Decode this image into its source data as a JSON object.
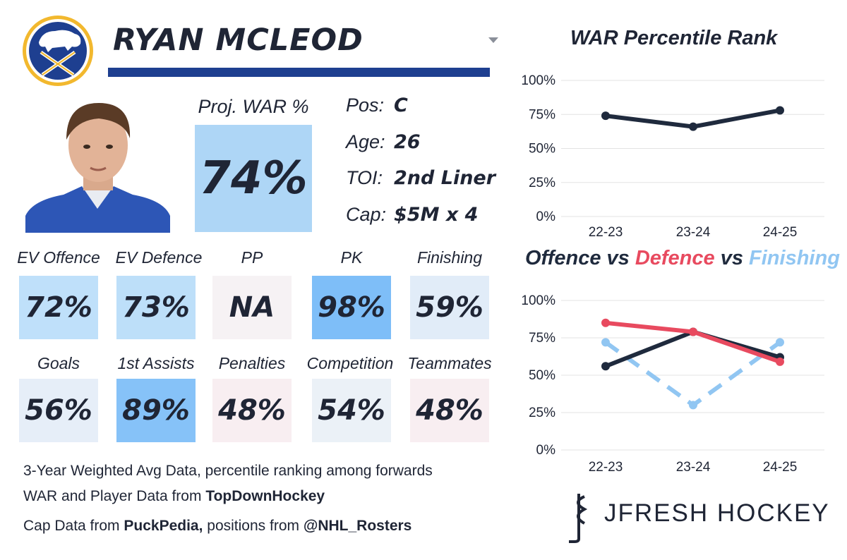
{
  "player": {
    "name": "RYAN MCLEOD",
    "proj_war_label": "Proj. WAR %",
    "proj_war_value": "74%",
    "proj_war_fraction": 0.74,
    "info": [
      {
        "key": "Pos:",
        "value": "C"
      },
      {
        "key": "Age:",
        "value": "26"
      },
      {
        "key": "TOI:",
        "value": "2nd Liner"
      },
      {
        "key": "Cap:",
        "value": "$5M x 4"
      }
    ]
  },
  "stats": [
    {
      "label": "EV Offence",
      "value": "72%",
      "color": "#bfe0fa"
    },
    {
      "label": "EV Defence",
      "value": "73%",
      "color": "#bddff9"
    },
    {
      "label": "PP",
      "value": "NA",
      "color": "#f6f2f4"
    },
    {
      "label": "PK",
      "value": "98%",
      "color": "#7ebef8"
    },
    {
      "label": "Finishing",
      "value": "59%",
      "color": "#e1ecf8"
    },
    {
      "label": "Goals",
      "value": "56%",
      "color": "#e6eef8"
    },
    {
      "label": "1st Assists",
      "value": "89%",
      "color": "#86c2f8"
    },
    {
      "label": "Penalties",
      "value": "48%",
      "color": "#f8eef1"
    },
    {
      "label": "Competition",
      "value": "54%",
      "color": "#ebf1f7"
    },
    {
      "label": "Teammates",
      "value": "48%",
      "color": "#f8eef1"
    }
  ],
  "footer": {
    "line1": "3-Year Weighted Avg Data, percentile ranking among forwards",
    "line2_prefix": "WAR and Player Data from ",
    "line2_bold": "TopDownHockey",
    "line3_prefix": "Cap Data from ",
    "line3_bold1": "PuckPedia,",
    "line3_mid": " positions from ",
    "line3_bold2": "@NHL_Rosters"
  },
  "brand": "JFRESH HOCKEY",
  "colors": {
    "navy": "#1f2535",
    "blue_bar": "#1e3f90",
    "offence": "#1f2a3d",
    "defence": "#e84a5f",
    "finishing": "#91c6f2"
  },
  "icons": [
    "team-logo-icon",
    "dropdown-caret-icon",
    "hockey-stick-logo-icon"
  ],
  "chart_data": [
    {
      "type": "line",
      "title": "WAR Percentile Rank",
      "categories": [
        "22-23",
        "23-24",
        "24-25"
      ],
      "series": [
        {
          "values": [
            74,
            66,
            78
          ],
          "color": "#1f2a3d"
        }
      ],
      "yticks": [
        "0%",
        "25%",
        "50%",
        "75%",
        "100%"
      ],
      "ylim": [
        0,
        100
      ],
      "grid": true
    },
    {
      "type": "line",
      "title_parts": [
        {
          "text": "Offence",
          "color": "#1f2a3d"
        },
        {
          "text": " vs ",
          "color": "#1f2a3d"
        },
        {
          "text": "Defence",
          "color": "#e84a5f"
        },
        {
          "text": " vs ",
          "color": "#1f2a3d"
        },
        {
          "text": "Finishing",
          "color": "#91c6f2"
        }
      ],
      "categories": [
        "22-23",
        "23-24",
        "24-25"
      ],
      "series": [
        {
          "values": [
            72,
            30,
            72
          ],
          "color": "#91c6f2",
          "dashed": true
        },
        {
          "values": [
            56,
            79,
            62
          ],
          "color": "#1f2a3d"
        },
        {
          "values": [
            85,
            79,
            59
          ],
          "color": "#e84a5f"
        }
      ],
      "yticks": [
        "0%",
        "25%",
        "50%",
        "75%",
        "100%"
      ],
      "ylim": [
        0,
        100
      ],
      "grid": true
    }
  ]
}
